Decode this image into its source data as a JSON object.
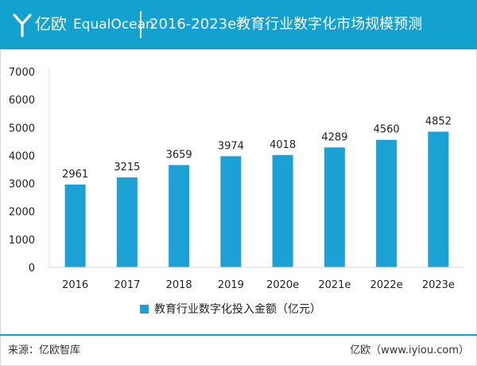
{
  "header": {
    "logo_cn": "亿欧",
    "logo_en": "EqualOcean",
    "title": "2016-2023e教育行业数字化市场规模预测",
    "bg_color": "#13a1d0"
  },
  "chart_data": {
    "type": "bar",
    "categories": [
      "2016",
      "2017",
      "2018",
      "2019",
      "2020e",
      "2021e",
      "2022e",
      "2023e"
    ],
    "series": [
      {
        "name": "教育行业数字化投入金额（亿元）",
        "values": [
          2961,
          3215,
          3659,
          3974,
          4018,
          4289,
          4560,
          4852
        ]
      }
    ],
    "ylim": [
      0,
      7000
    ],
    "yticks": [
      0,
      1000,
      2000,
      3000,
      4000,
      5000,
      6000,
      7000
    ],
    "grid": false,
    "legend_position": "bottom",
    "bar_color": "#1ba1d4"
  },
  "legend": {
    "label": "教育行业数字化投入金额（亿元）"
  },
  "footer": {
    "source": "来源：亿欧智库",
    "site": "亿欧（www.iyiou.com）"
  }
}
